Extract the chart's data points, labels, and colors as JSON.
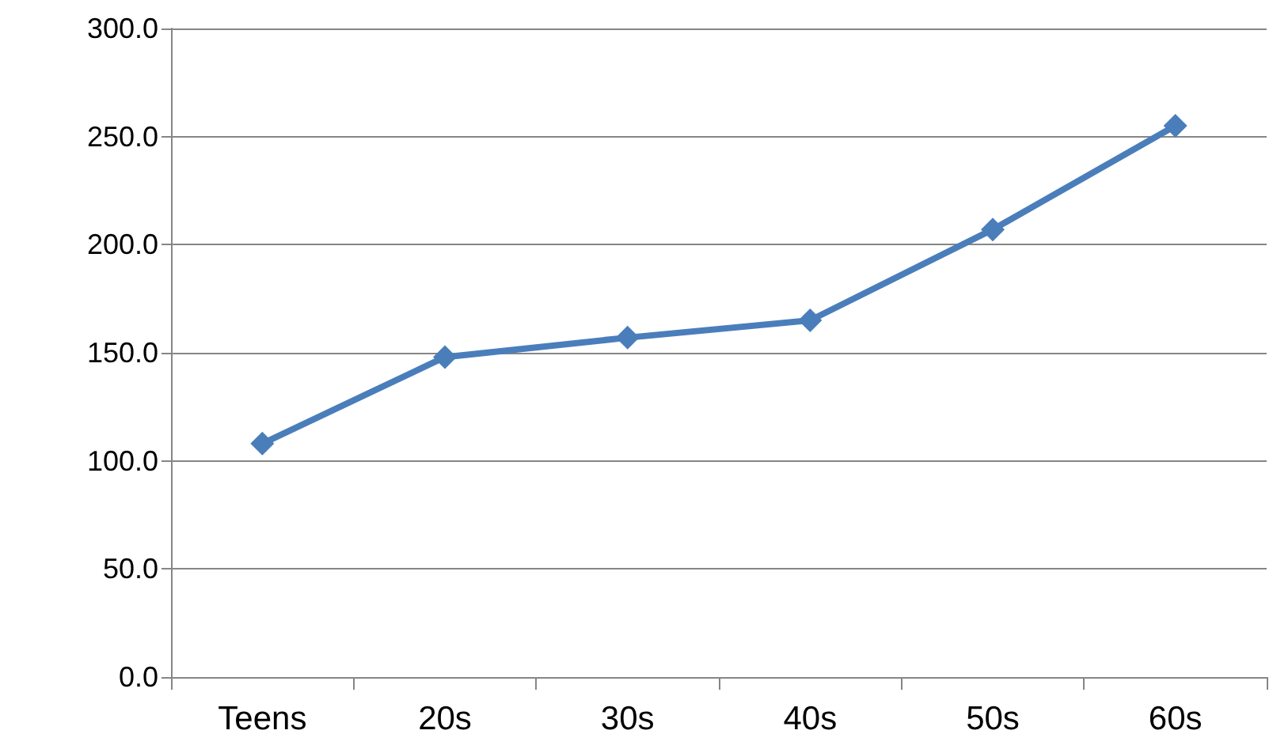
{
  "chart_data": {
    "type": "line",
    "categories": [
      "Teens",
      "20s",
      "30s",
      "40s",
      "50s",
      "60s"
    ],
    "series": [
      {
        "color": "#4a7ebb",
        "values": [
          108,
          148,
          157,
          165,
          207,
          255
        ]
      }
    ],
    "ylim": [
      0,
      300
    ],
    "yticks": [
      {
        "value": 0,
        "label": "0.0"
      },
      {
        "value": 50,
        "label": "50.0"
      },
      {
        "value": 100,
        "label": "100.0"
      },
      {
        "value": 150,
        "label": "150.0"
      },
      {
        "value": 200,
        "label": "200.0"
      },
      {
        "value": 250,
        "label": "250.0"
      },
      {
        "value": 300,
        "label": "300.0"
      }
    ],
    "grid": "y",
    "marker": "diamond",
    "line_style": "solid"
  }
}
